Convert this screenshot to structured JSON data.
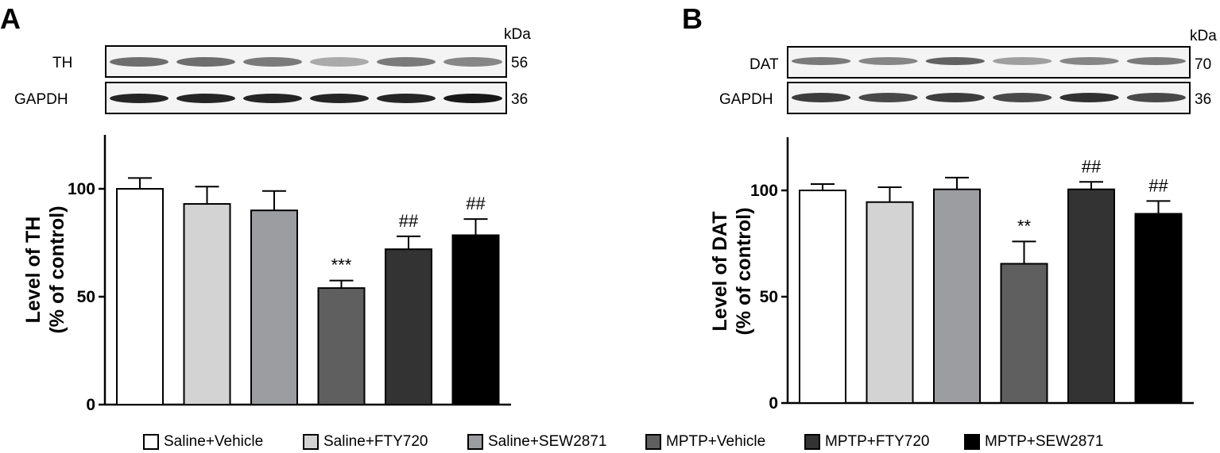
{
  "panels": [
    {
      "letter": "A",
      "kda_label": "kDa",
      "blots": [
        {
          "name": "TH",
          "kda": "56"
        },
        {
          "name": "GAPDH",
          "kda": "36"
        }
      ]
    },
    {
      "letter": "B",
      "kda_label": "kDa",
      "blots": [
        {
          "name": "DAT",
          "kda": "70"
        },
        {
          "name": "GAPDH",
          "kda": "36"
        }
      ]
    }
  ],
  "legend": [
    {
      "label": "Saline+Vehicle",
      "color": "#ffffff"
    },
    {
      "label": "Saline+FTY720",
      "color": "#d3d3d3"
    },
    {
      "label": "Saline+SEW2871",
      "color": "#9c9da0"
    },
    {
      "label": "MPTP+Vehicle",
      "color": "#5f5f5f"
    },
    {
      "label": "MPTP+FTY720",
      "color": "#333333"
    },
    {
      "label": "MPTP+SEW2871",
      "color": "#000000"
    }
  ],
  "chart_data": [
    {
      "type": "bar",
      "panel": "A",
      "categories": [
        "Saline+Vehicle",
        "Saline+FTY720",
        "Saline+SEW2871",
        "MPTP+Vehicle",
        "MPTP+FTY720",
        "MPTP+SEW2871"
      ],
      "values": [
        100,
        93,
        90,
        54,
        72,
        78.5
      ],
      "errors": [
        5,
        8,
        9,
        3.5,
        6,
        7.5
      ],
      "annotations": [
        "",
        "",
        "",
        "***",
        "##",
        "##"
      ],
      "ylabel_line1": "Level of TH",
      "ylabel_line2": "(% of control)",
      "yticks": [
        0,
        50,
        100
      ],
      "ylim": [
        0,
        125
      ]
    },
    {
      "type": "bar",
      "panel": "B",
      "categories": [
        "Saline+Vehicle",
        "Saline+FTY720",
        "Saline+SEW2871",
        "MPTP+Vehicle",
        "MPTP+FTY720",
        "MPTP+SEW2871"
      ],
      "values": [
        100,
        94.5,
        100.5,
        65.5,
        100.5,
        89
      ],
      "errors": [
        3,
        7,
        5.5,
        10.5,
        3.5,
        6
      ],
      "annotations": [
        "",
        "",
        "",
        "**",
        "##",
        "##"
      ],
      "ylabel_line1": "Level of DAT",
      "ylabel_line2": "(% of control)",
      "yticks": [
        0,
        50,
        100
      ],
      "ylim": [
        0,
        125
      ]
    }
  ]
}
